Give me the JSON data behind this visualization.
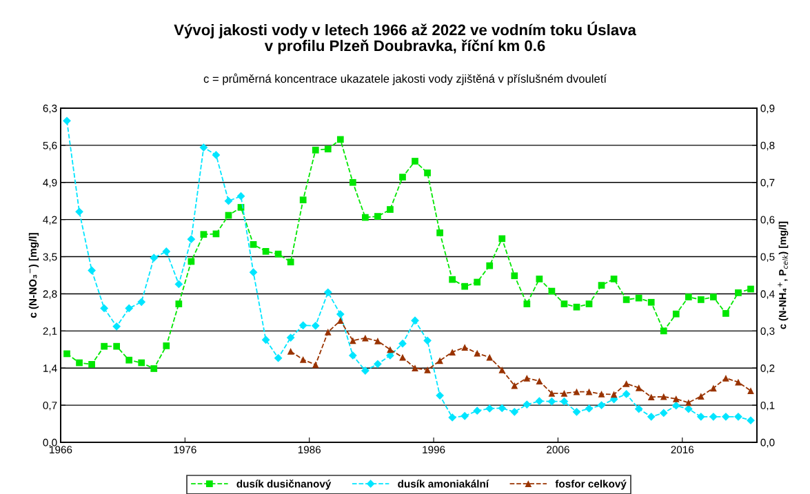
{
  "chart_data": {
    "type": "line",
    "title": "Vývoj jakosti vody v letech 1966 až 2022 ve vodním toku Úslava\nv profilu Plzeň Doubravka, říční km 0.6",
    "subtitle": "c = průměrná koncentrace ukazatele jakosti vody zjištěná v příslušném dvouletí",
    "ylabel": "c (N-NO₃$^{−}$) [mg/l]",
    "y2label": "c (N-NH₄$^{+}$, P$_{celk}$) [mg/l]",
    "x": [
      1966.5,
      1967.5,
      1968.5,
      1969.5,
      1970.5,
      1971.5,
      1972.5,
      1973.5,
      1974.5,
      1975.5,
      1976.5,
      1977.5,
      1978.5,
      1979.5,
      1980.5,
      1981.5,
      1982.5,
      1983.5,
      1984.5,
      1985.5,
      1986.5,
      1987.5,
      1988.5,
      1989.5,
      1990.5,
      1991.5,
      1992.5,
      1993.5,
      1994.5,
      1995.5,
      1996.5,
      1997.5,
      1998.5,
      1999.5,
      2000.5,
      2001.5,
      2002.5,
      2003.5,
      2004.5,
      2005.5,
      2006.5,
      2007.5,
      2008.5,
      2009.5,
      2010.5,
      2011.5,
      2012.5,
      2013.5,
      2014.5,
      2015.5,
      2016.5,
      2017.5,
      2018.5,
      2019.5,
      2020.5,
      2021.5
    ],
    "series": [
      {
        "name": "dusík dusičnanový",
        "color": "#00e600",
        "marker": "square",
        "values": [
          1.67,
          1.5,
          1.47,
          1.81,
          1.81,
          1.55,
          1.5,
          1.39,
          1.82,
          2.61,
          3.41,
          3.92,
          3.93,
          4.28,
          4.43,
          3.73,
          3.6,
          3.55,
          3.4,
          4.57,
          5.51,
          5.53,
          5.71,
          4.9,
          4.24,
          4.26,
          4.39,
          5.0,
          5.3,
          5.08,
          3.95,
          3.07,
          2.94,
          3.02,
          3.33,
          3.84,
          3.14,
          2.61,
          3.08,
          2.85,
          2.61,
          2.55,
          2.61,
          2.96,
          3.08,
          2.69,
          2.72,
          2.64,
          2.1,
          2.42,
          2.74,
          2.69,
          2.74,
          2.43,
          2.82,
          2.89
        ]
      },
      {
        "name": "dusík amoniakální",
        "color": "#00e5ff",
        "marker": "diamond",
        "axis": "y2",
        "values": [
          0.866,
          0.621,
          0.463,
          0.361,
          0.312,
          0.361,
          0.378,
          0.497,
          0.514,
          0.426,
          0.547,
          0.794,
          0.774,
          0.65,
          0.663,
          0.458,
          0.276,
          0.227,
          0.282,
          0.315,
          0.314,
          0.404,
          0.345,
          0.234,
          0.193,
          0.211,
          0.234,
          0.266,
          0.328,
          0.274,
          0.126,
          0.067,
          0.071,
          0.085,
          0.091,
          0.092,
          0.082,
          0.102,
          0.111,
          0.11,
          0.11,
          0.082,
          0.091,
          0.1,
          0.116,
          0.13,
          0.09,
          0.069,
          0.079,
          0.099,
          0.09,
          0.069,
          0.069,
          0.069,
          0.069,
          0.059
        ]
      },
      {
        "name": "fosfor celkový",
        "color": "#993300",
        "marker": "triangle",
        "axis": "y2",
        "values": [
          null,
          null,
          null,
          null,
          null,
          null,
          null,
          null,
          null,
          null,
          null,
          null,
          null,
          null,
          null,
          null,
          null,
          null,
          0.245,
          0.223,
          0.209,
          0.297,
          0.328,
          0.274,
          0.281,
          0.273,
          0.25,
          0.229,
          0.2,
          0.195,
          0.22,
          0.243,
          0.256,
          0.24,
          0.229,
          0.195,
          0.153,
          0.173,
          0.165,
          0.132,
          0.132,
          0.136,
          0.136,
          0.13,
          0.129,
          0.158,
          0.147,
          0.122,
          0.123,
          0.117,
          0.107,
          0.124,
          0.146,
          0.173,
          0.162,
          0.139
        ]
      }
    ],
    "xlim": [
      1966,
      2022
    ],
    "xticks": [
      1966,
      1976,
      1986,
      1996,
      2006,
      2016
    ],
    "ylim": [
      0,
      6.3
    ],
    "yticks": [
      {
        "value": 0,
        "label": "0,0"
      },
      {
        "value": 0.7,
        "label": "0,7"
      },
      {
        "value": 1.4,
        "label": "1,4"
      },
      {
        "value": 2.1,
        "label": "2,1"
      },
      {
        "value": 2.8,
        "label": "2,8"
      },
      {
        "value": 3.5,
        "label": "3,5"
      },
      {
        "value": 4.2,
        "label": "4,2"
      },
      {
        "value": 4.9,
        "label": "4,9"
      },
      {
        "value": 5.6,
        "label": "5,6"
      },
      {
        "value": 6.3,
        "label": "6,3"
      }
    ],
    "y2lim": [
      0,
      0.9
    ],
    "y2ticks": [
      {
        "value": 0,
        "label": "0,0"
      },
      {
        "value": 0.1,
        "label": "0,1"
      },
      {
        "value": 0.2,
        "label": "0,2"
      },
      {
        "value": 0.3,
        "label": "0,3"
      },
      {
        "value": 0.4,
        "label": "0,4"
      },
      {
        "value": 0.5,
        "label": "0,5"
      },
      {
        "value": 0.6,
        "label": "0,6"
      },
      {
        "value": 0.7,
        "label": "0,7"
      },
      {
        "value": 0.8,
        "label": "0,8"
      },
      {
        "value": 0.9,
        "label": "0,9"
      }
    ],
    "grid": "y",
    "legend": "bottom",
    "line_style": "dashed"
  }
}
